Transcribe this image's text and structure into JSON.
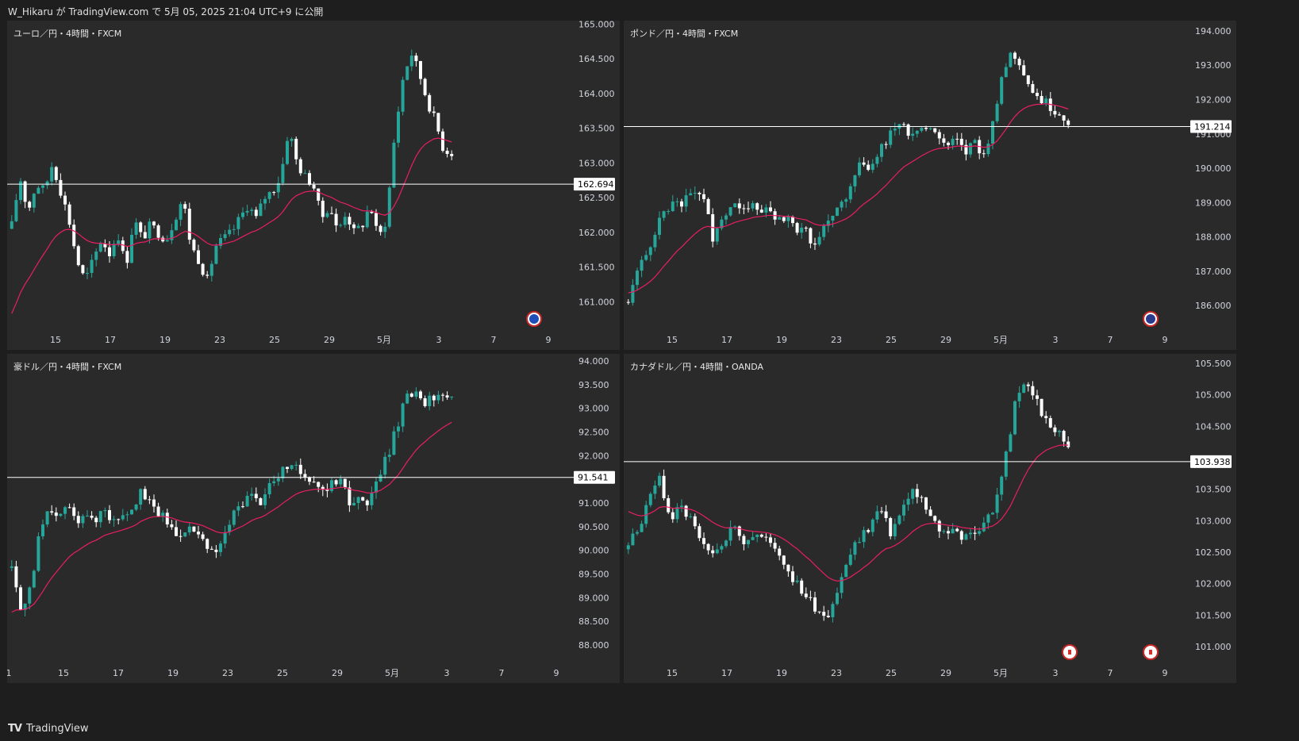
{
  "header": "W_Hikaru が TradingView.com で 5月 05, 2025 21:04 UTC+9 に公開",
  "footer": {
    "logo": "TV",
    "brand": "TradingView"
  },
  "colors": {
    "bull": "#26a69a",
    "bear": "#ffffff",
    "ma": "#e91e63",
    "line": "#ffffff",
    "bg": "#2a2a2a",
    "axis": "#d1d4dc"
  },
  "chart_data": [
    {
      "type": "candlestick",
      "title": "ユーロ／円・4時間・FXCM",
      "flag_icon": "eu-flag-icon",
      "y_ticks": [
        "165.000",
        "164.500",
        "164.000",
        "163.500",
        "163.000",
        "162.500",
        "162.000",
        "161.500",
        "161.000"
      ],
      "ylim": [
        160.65,
        165.05
      ],
      "x_ticks": [
        "15",
        "17",
        "19",
        "23",
        "25",
        "29",
        "5月",
        "3",
        "7",
        "9"
      ],
      "hline": {
        "value": 162.694,
        "label": "162.694"
      },
      "ma_start": 160.7,
      "close_path": [
        162.1,
        162.8,
        162.3,
        162.7,
        162.6,
        163.0,
        162.6,
        162.2,
        161.6,
        161.3,
        161.6,
        161.9,
        161.7,
        162.0,
        161.5,
        162.2,
        161.9,
        162.1,
        162.0,
        161.9,
        162.2,
        162.5,
        161.8,
        161.6,
        161.3,
        161.8,
        161.9,
        162.0,
        162.2,
        162.4,
        162.2,
        162.5,
        162.6,
        162.8,
        163.5,
        163.0,
        162.8,
        162.7,
        162.2,
        162.4,
        162.0,
        162.3,
        162.0,
        162.1,
        162.4,
        161.9,
        162.2,
        163.4,
        164.2,
        164.6,
        164.3,
        163.9,
        163.6,
        163.2,
        163.15
      ]
    },
    {
      "type": "candlestick",
      "title": "ポンド／円・4時間・FXCM",
      "flag_icon": "uk-flag-icon",
      "y_ticks": [
        "194.000",
        "193.000",
        "192.000",
        "191.000",
        "190.000",
        "189.000",
        "188.000",
        "187.000",
        "186.000"
      ],
      "ylim": [
        185.4,
        194.3
      ],
      "x_ticks": [
        "15",
        "17",
        "19",
        "23",
        "25",
        "29",
        "5月",
        "3",
        "7",
        "9"
      ],
      "hline": {
        "value": 191.214,
        "label": "191.214"
      },
      "ma_start": 186.4,
      "close_path": [
        186.2,
        187.0,
        187.5,
        188.3,
        188.8,
        189.1,
        189.0,
        189.4,
        189.2,
        188.0,
        188.6,
        188.9,
        189.0,
        188.9,
        188.8,
        188.7,
        188.6,
        188.5,
        188.2,
        188.1,
        187.8,
        188.3,
        188.7,
        189.0,
        189.8,
        190.2,
        190.0,
        190.6,
        191.0,
        191.4,
        191.0,
        191.2,
        191.1,
        191.0,
        190.6,
        190.8,
        190.4,
        190.8,
        190.3,
        191.5,
        192.8,
        193.4,
        193.0,
        192.3,
        192.0,
        191.8,
        191.6,
        191.35
      ]
    },
    {
      "type": "candlestick",
      "title": "豪ドル／円・4時間・FXCM",
      "y_ticks": [
        "94.000",
        "93.500",
        "93.000",
        "92.500",
        "92.000",
        "91.500",
        "91.000",
        "90.500",
        "90.000",
        "89.500",
        "89.000",
        "88.500",
        "88.000"
      ],
      "ylim": [
        87.7,
        94.15
      ],
      "x_ticks": [
        "1",
        "15",
        "17",
        "19",
        "23",
        "25",
        "29",
        "5月",
        "3",
        "7",
        "9"
      ],
      "hline": {
        "value": 91.541,
        "label": "91.541"
      },
      "ma_start": 88.6,
      "close_path": [
        89.7,
        88.6,
        89.2,
        90.3,
        90.8,
        90.6,
        91.0,
        90.6,
        90.9,
        90.5,
        91.0,
        90.6,
        90.8,
        90.9,
        91.2,
        91.0,
        90.8,
        90.6,
        90.3,
        90.5,
        90.4,
        90.1,
        89.9,
        90.2,
        90.7,
        91.0,
        91.2,
        91.0,
        91.4,
        91.5,
        91.8,
        91.7,
        91.6,
        91.5,
        91.3,
        91.4,
        91.6,
        90.8,
        91.2,
        91.0,
        91.5,
        92.0,
        92.6,
        93.2,
        93.3,
        93.1,
        93.2,
        93.25,
        93.3
      ]
    },
    {
      "type": "candlestick",
      "title": "カナダドル／円・4時間・OANDA",
      "flag_icon": "ca-flag-icon",
      "y_ticks": [
        "105.500",
        "105.000",
        "104.500",
        "103.500",
        "103.000",
        "102.500",
        "102.000",
        "101.500",
        "101.000"
      ],
      "ylim": [
        100.8,
        105.65
      ],
      "x_ticks": [
        "15",
        "17",
        "19",
        "23",
        "25",
        "29",
        "5月",
        "3",
        "7",
        "9"
      ],
      "hline": {
        "value": 103.938,
        "label": "103.938"
      },
      "ma_start": 103.2,
      "close_path": [
        102.6,
        102.9,
        103.3,
        103.7,
        103.0,
        103.2,
        103.0,
        102.6,
        102.4,
        102.7,
        102.9,
        102.7,
        102.8,
        102.7,
        102.6,
        102.3,
        102.0,
        101.8,
        101.6,
        101.5,
        101.9,
        102.4,
        102.7,
        102.9,
        103.2,
        102.8,
        103.1,
        103.5,
        103.3,
        103.0,
        102.8,
        102.9,
        102.7,
        102.8,
        103.0,
        103.2,
        104.0,
        104.9,
        105.2,
        104.9,
        104.5,
        104.4,
        104.2
      ]
    }
  ]
}
